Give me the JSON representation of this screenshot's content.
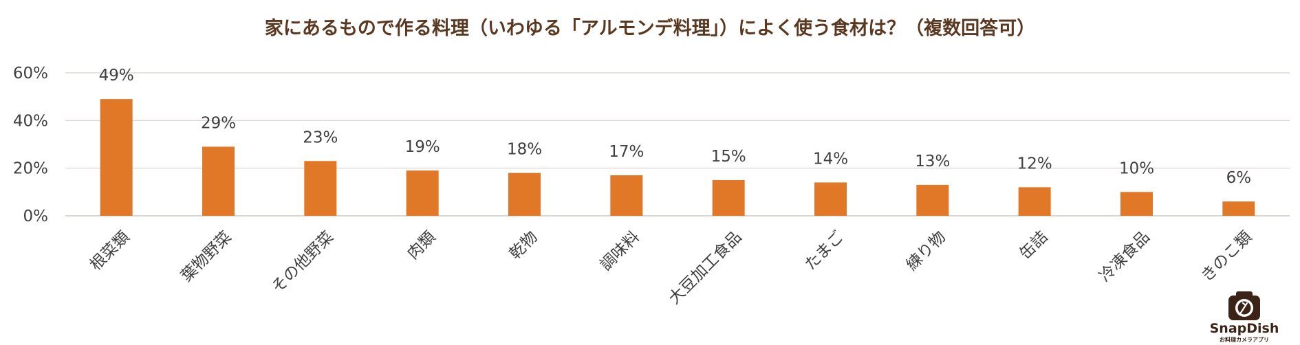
{
  "chart_data": {
    "type": "bar",
    "title": "家にあるもので作る料理（いわゆる「アルモンデ料理」）によく使う食材は？（複数回答可）",
    "categories": [
      "根菜類",
      "葉物野菜",
      "その他野菜",
      "肉類",
      "乾物",
      "調味料",
      "大豆加工食品",
      "たまご",
      "練り物",
      "缶詰",
      "冷凍食品",
      "きのこ類"
    ],
    "values": [
      49,
      29,
      23,
      19,
      18,
      17,
      15,
      14,
      13,
      12,
      10,
      6
    ],
    "value_labels": [
      "49%",
      "29%",
      "23%",
      "19%",
      "18%",
      "17%",
      "15%",
      "14%",
      "13%",
      "12%",
      "10%",
      "6%"
    ],
    "ylim": [
      0,
      60
    ],
    "yticks": [
      0,
      20,
      40,
      60
    ],
    "ytick_labels": [
      "0%",
      "20%",
      "40%",
      "60%"
    ],
    "xlabel": "",
    "ylabel": "",
    "grid": true,
    "bar_color": "#e07828"
  },
  "logo": {
    "name": "SnapDish",
    "tagline": "お料理カメラアプリ",
    "icon": "camera-fork-icon",
    "color": "#3b2417"
  }
}
